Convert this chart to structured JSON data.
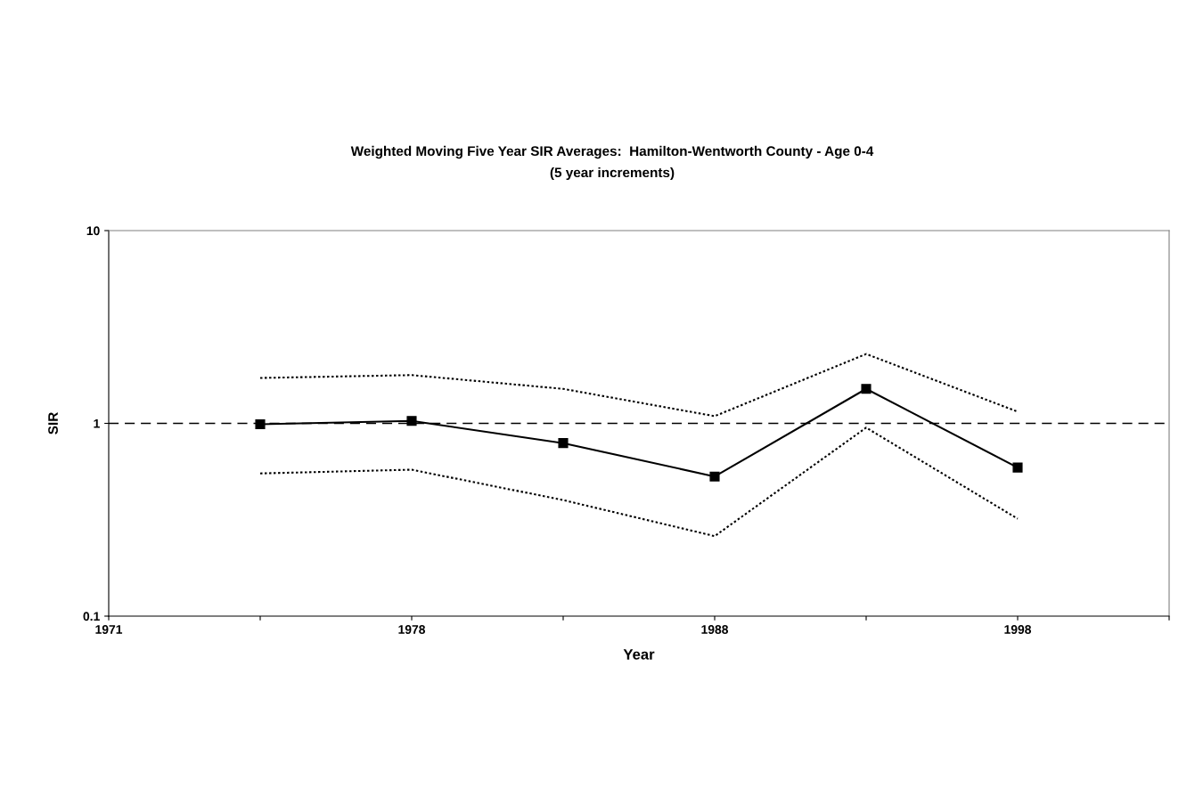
{
  "chart_data": {
    "type": "line",
    "title": "Weighted Moving Five Year SIR Averages:  Hamilton-Wentworth County - Age 0-4",
    "subtitle": "(5 year increments)",
    "xlabel": "Year",
    "ylabel": "SIR",
    "categories": [
      "1971",
      null,
      "1978",
      null,
      "1988",
      null,
      "1998",
      null
    ],
    "series": [
      {
        "color": "#000000",
        "values": [
          null,
          0.99,
          1.03,
          0.79,
          0.53,
          1.51,
          0.59,
          null
        ],
        "marker": "square",
        "line_style": "solid"
      },
      {
        "color": "#000000",
        "values": [
          null,
          1.72,
          1.78,
          1.51,
          1.09,
          2.29,
          1.15,
          null
        ],
        "marker": "none",
        "line_style": "dotted"
      },
      {
        "color": "#000000",
        "values": [
          null,
          0.55,
          0.575,
          0.4,
          0.26,
          0.95,
          0.32,
          null
        ],
        "marker": "none",
        "line_style": "dotted"
      }
    ],
    "log": "y",
    "ylim": [
      0.1,
      10
    ],
    "yticks": [
      0.1,
      1,
      10
    ],
    "grid": false,
    "legend": false,
    "ref_lines": [
      {
        "axis": "y",
        "value": 1,
        "color": "#000000",
        "line_style": "dashed"
      }
    ]
  }
}
